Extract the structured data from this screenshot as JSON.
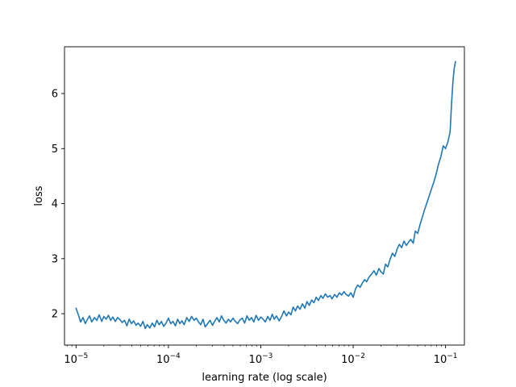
{
  "chart_data": {
    "type": "line",
    "title": "",
    "xlabel": "learning rate (log scale)",
    "ylabel": "loss",
    "xscale": "log",
    "xlim": [
      7.5e-06,
      0.16
    ],
    "ylim": [
      1.43,
      6.85
    ],
    "x_ticks": [
      {
        "value": 1e-05,
        "base": "10",
        "exp": "−5"
      },
      {
        "value": 0.0001,
        "base": "10",
        "exp": "−4"
      },
      {
        "value": 0.001,
        "base": "10",
        "exp": "−3"
      },
      {
        "value": 0.01,
        "base": "10",
        "exp": "−2"
      },
      {
        "value": 0.1,
        "base": "10",
        "exp": "−1"
      }
    ],
    "y_ticks": [
      {
        "value": 2,
        "label": "2"
      },
      {
        "value": 3,
        "label": "3"
      },
      {
        "value": 4,
        "label": "4"
      },
      {
        "value": 5,
        "label": "5"
      },
      {
        "value": 6,
        "label": "6"
      }
    ],
    "grid": false,
    "legend": "none",
    "line_color": "#1f77b4",
    "series": [
      {
        "x": [
          1e-05,
          1.06e-05,
          1.12e-05,
          1.19e-05,
          1.26e-05,
          1.33e-05,
          1.4e-05,
          1.48e-05,
          1.58e-05,
          1.68e-05,
          1.78e-05,
          1.9e-05,
          2e-05,
          2.12e-05,
          2.24e-05,
          2.37e-05,
          2.5e-05,
          2.66e-05,
          2.82e-05,
          3e-05,
          3.16e-05,
          3.35e-05,
          3.55e-05,
          3.76e-05,
          3.98e-05,
          4.2e-05,
          4.47e-05,
          4.7e-05,
          5e-05,
          5.3e-05,
          5.62e-05,
          5.9e-05,
          6.3e-05,
          6.68e-05,
          7.08e-05,
          7.5e-05,
          7.94e-05,
          8.4e-05,
          8.9e-05,
          9.44e-05,
          0.0001,
          0.000106,
          0.000112,
          0.000119,
          0.000126,
          0.000133,
          0.00014,
          0.000148,
          0.000158,
          0.000168,
          0.000178,
          0.00019,
          0.0002,
          0.000212,
          0.000224,
          0.000237,
          0.00025,
          0.000266,
          0.000282,
          0.0003,
          0.000316,
          0.000335,
          0.000355,
          0.000376,
          0.000398,
          0.00042,
          0.000447,
          0.00047,
          0.0005,
          0.00053,
          0.000562,
          0.00059,
          0.00063,
          0.000668,
          0.000708,
          0.00075,
          0.000794,
          0.00084,
          0.00089,
          0.000944,
          0.001,
          0.00106,
          0.00112,
          0.00119,
          0.00126,
          0.00133,
          0.0014,
          0.00148,
          0.00158,
          0.00168,
          0.00178,
          0.0019,
          0.002,
          0.00212,
          0.00224,
          0.00237,
          0.0025,
          0.00266,
          0.00282,
          0.003,
          0.00316,
          0.00335,
          0.00355,
          0.00376,
          0.00398,
          0.0042,
          0.00447,
          0.0047,
          0.005,
          0.0053,
          0.00562,
          0.0059,
          0.0063,
          0.00668,
          0.00708,
          0.0075,
          0.00794,
          0.0084,
          0.0089,
          0.00944,
          0.01,
          0.0106,
          0.0112,
          0.0119,
          0.0126,
          0.0133,
          0.014,
          0.0148,
          0.0158,
          0.0168,
          0.0178,
          0.019,
          0.02,
          0.0212,
          0.0224,
          0.0237,
          0.025,
          0.0266,
          0.0282,
          0.03,
          0.0316,
          0.0335,
          0.0355,
          0.0376,
          0.0398,
          0.042,
          0.0447,
          0.047,
          0.05,
          0.053,
          0.0562,
          0.059,
          0.063,
          0.0668,
          0.0708,
          0.075,
          0.0794,
          0.084,
          0.089,
          0.0944,
          0.1,
          0.106,
          0.112,
          0.116,
          0.12,
          0.124,
          0.128
        ],
        "y": [
          2.1,
          1.98,
          1.85,
          1.93,
          1.82,
          1.9,
          1.96,
          1.85,
          1.93,
          1.88,
          1.98,
          1.86,
          1.95,
          1.9,
          1.97,
          1.88,
          1.94,
          1.86,
          1.93,
          1.89,
          1.84,
          1.88,
          1.78,
          1.9,
          1.82,
          1.87,
          1.79,
          1.83,
          1.77,
          1.86,
          1.73,
          1.8,
          1.74,
          1.83,
          1.76,
          1.88,
          1.8,
          1.86,
          1.77,
          1.83,
          1.92,
          1.82,
          1.86,
          1.78,
          1.9,
          1.82,
          1.87,
          1.8,
          1.93,
          1.86,
          1.95,
          1.88,
          1.92,
          1.85,
          1.8,
          1.9,
          1.76,
          1.82,
          1.88,
          1.79,
          1.86,
          1.93,
          1.85,
          1.96,
          1.88,
          1.83,
          1.9,
          1.85,
          1.92,
          1.86,
          1.82,
          1.88,
          1.92,
          1.83,
          1.96,
          1.88,
          1.93,
          1.85,
          1.97,
          1.88,
          1.94,
          1.9,
          1.85,
          1.95,
          1.88,
          1.99,
          1.9,
          1.96,
          1.87,
          1.95,
          2.05,
          1.96,
          2.03,
          1.98,
          2.12,
          2.05,
          2.14,
          2.08,
          2.18,
          2.1,
          2.22,
          2.15,
          2.25,
          2.2,
          2.3,
          2.24,
          2.33,
          2.28,
          2.36,
          2.3,
          2.33,
          2.27,
          2.35,
          2.3,
          2.38,
          2.34,
          2.4,
          2.35,
          2.32,
          2.38,
          2.3,
          2.45,
          2.52,
          2.48,
          2.56,
          2.62,
          2.58,
          2.66,
          2.72,
          2.78,
          2.7,
          2.82,
          2.76,
          2.72,
          2.9,
          2.85,
          2.98,
          3.1,
          3.04,
          3.18,
          3.26,
          3.2,
          3.32,
          3.24,
          3.3,
          3.35,
          3.28,
          3.5,
          3.46,
          3.62,
          3.76,
          3.88,
          4.02,
          4.15,
          4.28,
          4.4,
          4.55,
          4.72,
          4.85,
          5.05,
          5.0,
          5.12,
          5.3,
          5.8,
          6.2,
          6.45,
          6.58
        ]
      }
    ]
  }
}
